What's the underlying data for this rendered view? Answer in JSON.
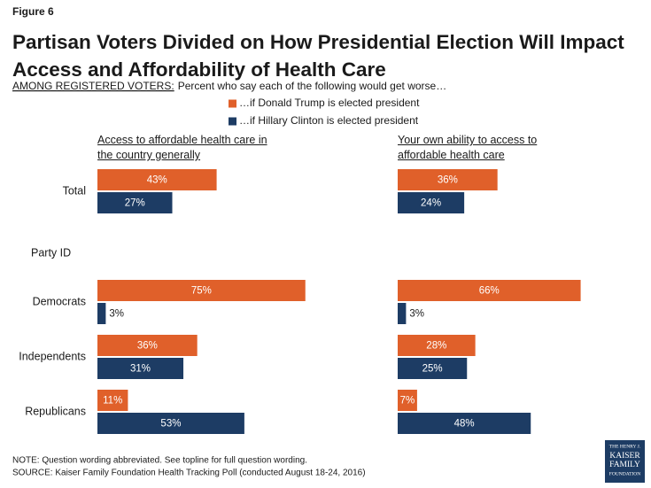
{
  "figure_label": "Figure 6",
  "chart_data": {
    "type": "bar",
    "orientation": "horizontal",
    "title": "Partisan Voters Divided on How Presidential Election Will Impact Access and Affordability of Health Care",
    "subtitle_lead": "AMONG REGISTERED VOTERS:",
    "subtitle": "Percent who say each of the following would get worse…",
    "categories": [
      "Total",
      "Democrats",
      "Independents",
      "Republicans"
    ],
    "category_group_label": "Party ID",
    "series": [
      {
        "name": "…if Donald Trump is elected president",
        "color": "#e0602a"
      },
      {
        "name": "…if Hillary Clinton is elected president",
        "color": "#1d3c64"
      }
    ],
    "xlim": [
      0,
      100
    ],
    "panels": [
      {
        "title": "Access to affordable health care in the country generally",
        "values": [
          [
            43,
            75,
            36,
            11
          ],
          [
            27,
            3,
            31,
            53
          ]
        ],
        "value_labels": [
          [
            "43%",
            "75%",
            "36%",
            "11%"
          ],
          [
            "27%",
            "3%",
            "31%",
            "53%"
          ]
        ]
      },
      {
        "title": "Your own ability to access to affordable health care",
        "values": [
          [
            36,
            66,
            28,
            7
          ],
          [
            24,
            3,
            25,
            48
          ]
        ],
        "value_labels": [
          [
            "36%",
            "66%",
            "28%",
            "7%"
          ],
          [
            "24%",
            "3%",
            "25%",
            "48%"
          ]
        ]
      }
    ]
  },
  "note": "NOTE: Question wording abbreviated. See topline for full question wording.",
  "source": "SOURCE: Kaiser Family Foundation Health Tracking Poll (conducted August 18-24, 2016)",
  "logo": [
    "THE HENRY J.",
    "KAISER",
    "FAMILY",
    "FOUNDATION"
  ]
}
